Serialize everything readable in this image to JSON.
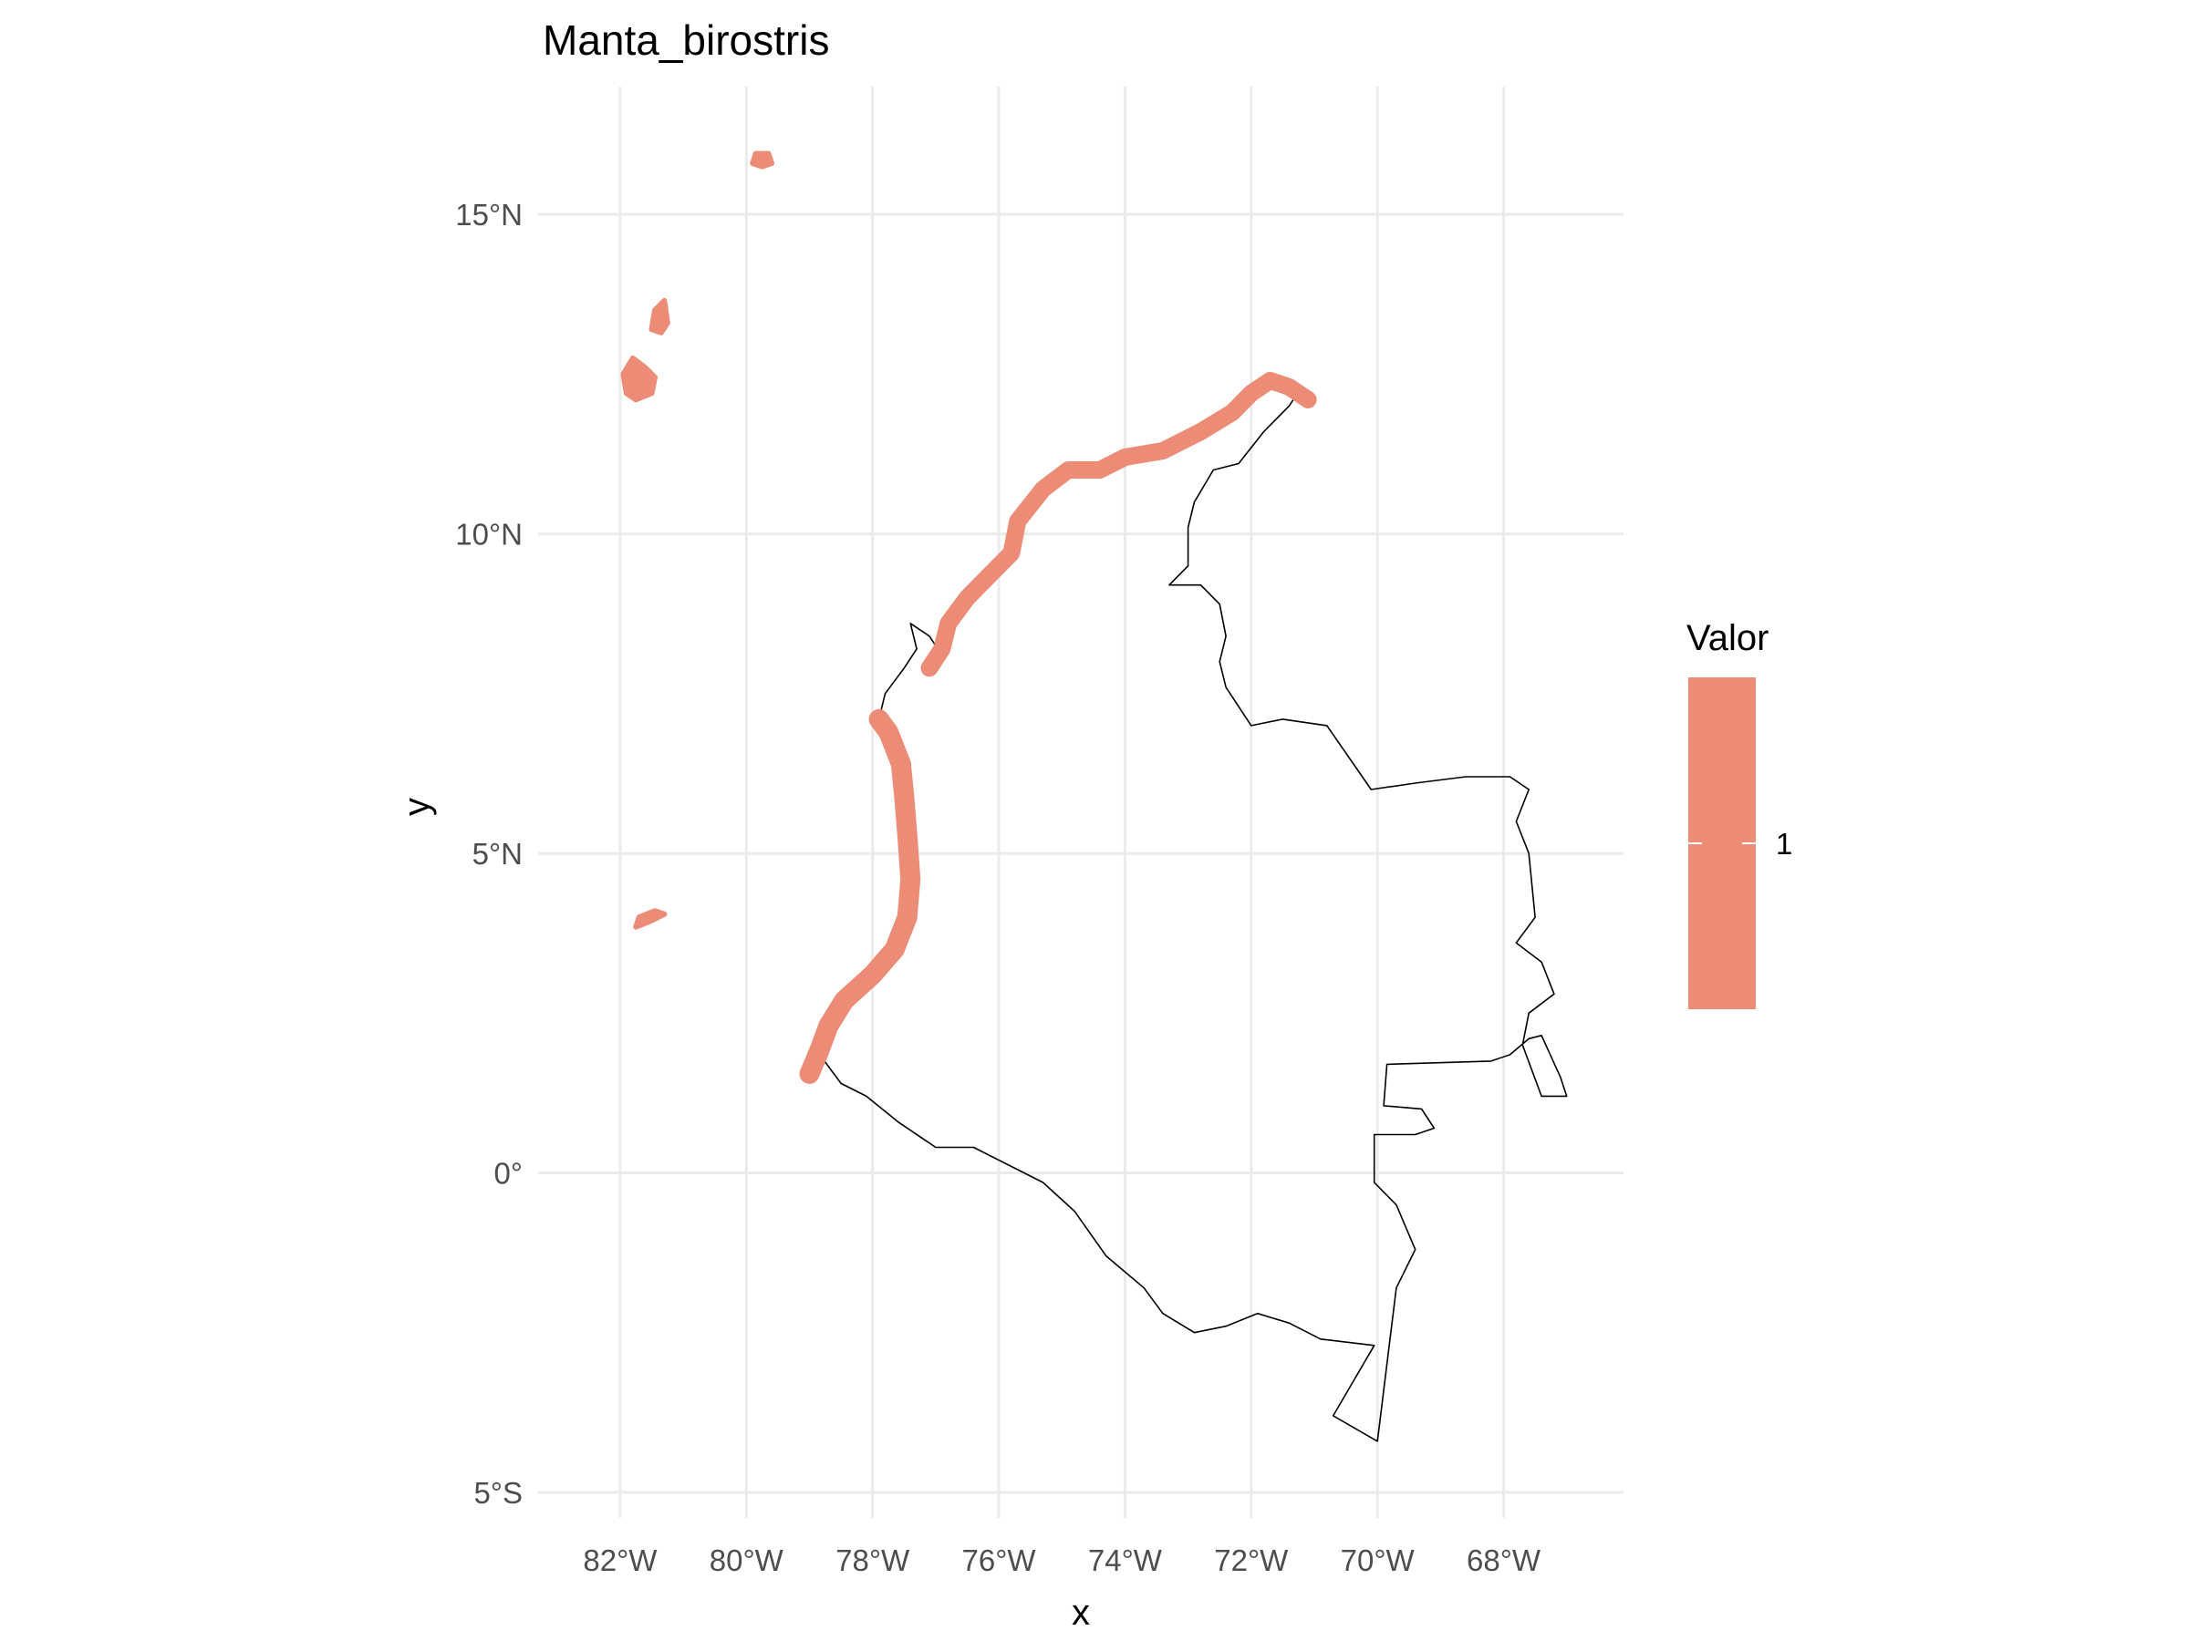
{
  "title": "Manta_birostris",
  "axes": {
    "x": {
      "label": "x",
      "range": [
        -83.3,
        -66.1
      ],
      "ticks": [
        {
          "value": -82,
          "label": "82°W"
        },
        {
          "value": -80,
          "label": "80°W"
        },
        {
          "value": -78,
          "label": "78°W"
        },
        {
          "value": -76,
          "label": "76°W"
        },
        {
          "value": -74,
          "label": "74°W"
        },
        {
          "value": -72,
          "label": "72°W"
        },
        {
          "value": -70,
          "label": "70°W"
        },
        {
          "value": -68,
          "label": "68°W"
        }
      ]
    },
    "y": {
      "label": "y",
      "range": [
        -5.4,
        17.0
      ],
      "ticks": [
        {
          "value": -5,
          "label": "5°S"
        },
        {
          "value": 0,
          "label": "0°"
        },
        {
          "value": 5,
          "label": "5°N"
        },
        {
          "value": 10,
          "label": "10°N"
        },
        {
          "value": 15,
          "label": "15°N"
        }
      ]
    },
    "grid": true
  },
  "legend": {
    "title": "Valor",
    "labels": [
      "1"
    ],
    "color": "#EC8C76",
    "placement": "right"
  },
  "colors": {
    "fill": "#EC8C76",
    "outline": "#000000",
    "grid": "#EBEBEB"
  },
  "map": {
    "outline": [
      [
        -79.0,
        1.6
      ],
      [
        -78.8,
        1.8
      ],
      [
        -78.5,
        1.4
      ],
      [
        -78.1,
        1.2
      ],
      [
        -77.6,
        0.8
      ],
      [
        -77.0,
        0.4
      ],
      [
        -76.4,
        0.4
      ],
      [
        -75.8,
        0.1
      ],
      [
        -75.3,
        -0.15
      ],
      [
        -74.8,
        -0.6
      ],
      [
        -74.3,
        -1.3
      ],
      [
        -73.7,
        -1.8
      ],
      [
        -73.4,
        -2.2
      ],
      [
        -72.9,
        -2.5
      ],
      [
        -72.4,
        -2.4
      ],
      [
        -71.9,
        -2.2
      ],
      [
        -71.4,
        -2.35
      ],
      [
        -70.9,
        -2.6
      ],
      [
        -70.05,
        -2.7
      ],
      [
        -70.7,
        -3.8
      ],
      [
        -70.0,
        -4.2
      ],
      [
        -69.7,
        -1.8
      ],
      [
        -69.4,
        -1.2
      ],
      [
        -69.7,
        -0.5
      ],
      [
        -70.05,
        -0.15
      ],
      [
        -70.05,
        0.6
      ],
      [
        -69.4,
        0.6
      ],
      [
        -69.1,
        0.7
      ],
      [
        -69.3,
        1.0
      ],
      [
        -69.9,
        1.05
      ],
      [
        -69.85,
        1.7
      ],
      [
        -68.2,
        1.75
      ],
      [
        -67.9,
        1.85
      ],
      [
        -67.6,
        2.1
      ],
      [
        -67.4,
        2.15
      ],
      [
        -67.1,
        1.5
      ],
      [
        -67.0,
        1.2
      ],
      [
        -67.4,
        1.2
      ],
      [
        -67.7,
        2.0
      ],
      [
        -67.6,
        2.5
      ],
      [
        -67.2,
        2.8
      ],
      [
        -67.4,
        3.3
      ],
      [
        -67.8,
        3.6
      ],
      [
        -67.5,
        4.0
      ],
      [
        -67.6,
        5.0
      ],
      [
        -67.8,
        5.5
      ],
      [
        -67.6,
        6.0
      ],
      [
        -67.9,
        6.2
      ],
      [
        -68.6,
        6.2
      ],
      [
        -69.4,
        6.1
      ],
      [
        -70.1,
        6.0
      ],
      [
        -70.8,
        7.0
      ],
      [
        -71.5,
        7.1
      ],
      [
        -72.0,
        7.0
      ],
      [
        -72.2,
        7.3
      ],
      [
        -72.4,
        7.6
      ],
      [
        -72.5,
        8.0
      ],
      [
        -72.4,
        8.4
      ],
      [
        -72.5,
        8.9
      ],
      [
        -72.8,
        9.2
      ],
      [
        -73.3,
        9.2
      ],
      [
        -73.0,
        9.5
      ],
      [
        -73.0,
        10.1
      ],
      [
        -72.9,
        10.5
      ],
      [
        -72.6,
        11.0
      ],
      [
        -72.2,
        11.1
      ],
      [
        -71.8,
        11.6
      ],
      [
        -71.4,
        12.0
      ],
      [
        -71.2,
        12.3
      ],
      [
        -71.7,
        12.4
      ],
      [
        -72.0,
        12.2
      ],
      [
        -72.3,
        11.9
      ],
      [
        -72.8,
        11.6
      ],
      [
        -73.4,
        11.3
      ],
      [
        -74.0,
        11.2
      ],
      [
        -74.4,
        11.0
      ],
      [
        -74.9,
        11.0
      ],
      [
        -75.3,
        10.7
      ],
      [
        -75.7,
        10.2
      ],
      [
        -75.8,
        9.7
      ],
      [
        -76.1,
        9.4
      ],
      [
        -76.5,
        9.0
      ],
      [
        -76.8,
        8.6
      ],
      [
        -76.9,
        8.1
      ],
      [
        -77.1,
        8.4
      ],
      [
        -77.4,
        8.6
      ],
      [
        -77.3,
        8.2
      ],
      [
        -77.5,
        7.9
      ],
      [
        -77.8,
        7.5
      ],
      [
        -77.9,
        7.1
      ],
      [
        -77.6,
        6.8
      ],
      [
        -77.4,
        6.4
      ],
      [
        -77.5,
        5.9
      ],
      [
        -77.4,
        5.4
      ],
      [
        -77.3,
        4.7
      ],
      [
        -77.4,
        4.1
      ],
      [
        -77.6,
        3.8
      ],
      [
        -77.9,
        3.3
      ],
      [
        -78.4,
        2.9
      ],
      [
        -78.6,
        2.6
      ],
      [
        -78.8,
        2.3
      ],
      [
        -78.9,
        1.9
      ],
      [
        -79.0,
        1.6
      ]
    ],
    "caribbean_coast_band": [
      [
        -77.1,
        7.9
      ],
      [
        -76.9,
        8.2
      ],
      [
        -76.8,
        8.6
      ],
      [
        -76.5,
        9.0
      ],
      [
        -76.1,
        9.4
      ],
      [
        -75.8,
        9.7
      ],
      [
        -75.7,
        10.2
      ],
      [
        -75.3,
        10.7
      ],
      [
        -74.9,
        11.0
      ],
      [
        -74.4,
        11.0
      ],
      [
        -74.0,
        11.2
      ],
      [
        -73.4,
        11.3
      ],
      [
        -72.8,
        11.6
      ],
      [
        -72.3,
        11.9
      ],
      [
        -72.0,
        12.2
      ],
      [
        -71.7,
        12.4
      ],
      [
        -71.4,
        12.3
      ],
      [
        -71.1,
        12.1
      ]
    ],
    "pacific_coast_band": [
      [
        -79.0,
        1.55
      ],
      [
        -78.85,
        1.9
      ],
      [
        -78.7,
        2.3
      ],
      [
        -78.45,
        2.7
      ],
      [
        -78.0,
        3.1
      ],
      [
        -77.65,
        3.5
      ],
      [
        -77.45,
        4.0
      ],
      [
        -77.4,
        4.6
      ],
      [
        -77.45,
        5.3
      ],
      [
        -77.5,
        5.9
      ],
      [
        -77.55,
        6.4
      ],
      [
        -77.75,
        6.9
      ],
      [
        -77.9,
        7.1
      ]
    ],
    "islands": [
      {
        "points": [
          [
            -79.9,
            15.8
          ],
          [
            -79.75,
            15.75
          ],
          [
            -79.6,
            15.8
          ],
          [
            -79.65,
            15.95
          ],
          [
            -79.85,
            15.95
          ]
        ]
      },
      {
        "points": [
          [
            -81.5,
            13.2
          ],
          [
            -81.35,
            13.15
          ],
          [
            -81.25,
            13.3
          ],
          [
            -81.3,
            13.65
          ],
          [
            -81.45,
            13.5
          ]
        ]
      },
      {
        "points": [
          [
            -81.95,
            12.5
          ],
          [
            -81.8,
            12.75
          ],
          [
            -81.6,
            12.6
          ],
          [
            -81.45,
            12.45
          ],
          [
            -81.5,
            12.2
          ],
          [
            -81.75,
            12.1
          ],
          [
            -81.9,
            12.2
          ]
        ]
      },
      {
        "points": [
          [
            -81.75,
            3.85
          ],
          [
            -81.5,
            3.95
          ],
          [
            -81.3,
            4.05
          ],
          [
            -81.45,
            4.1
          ],
          [
            -81.7,
            4.0
          ]
        ]
      }
    ]
  }
}
